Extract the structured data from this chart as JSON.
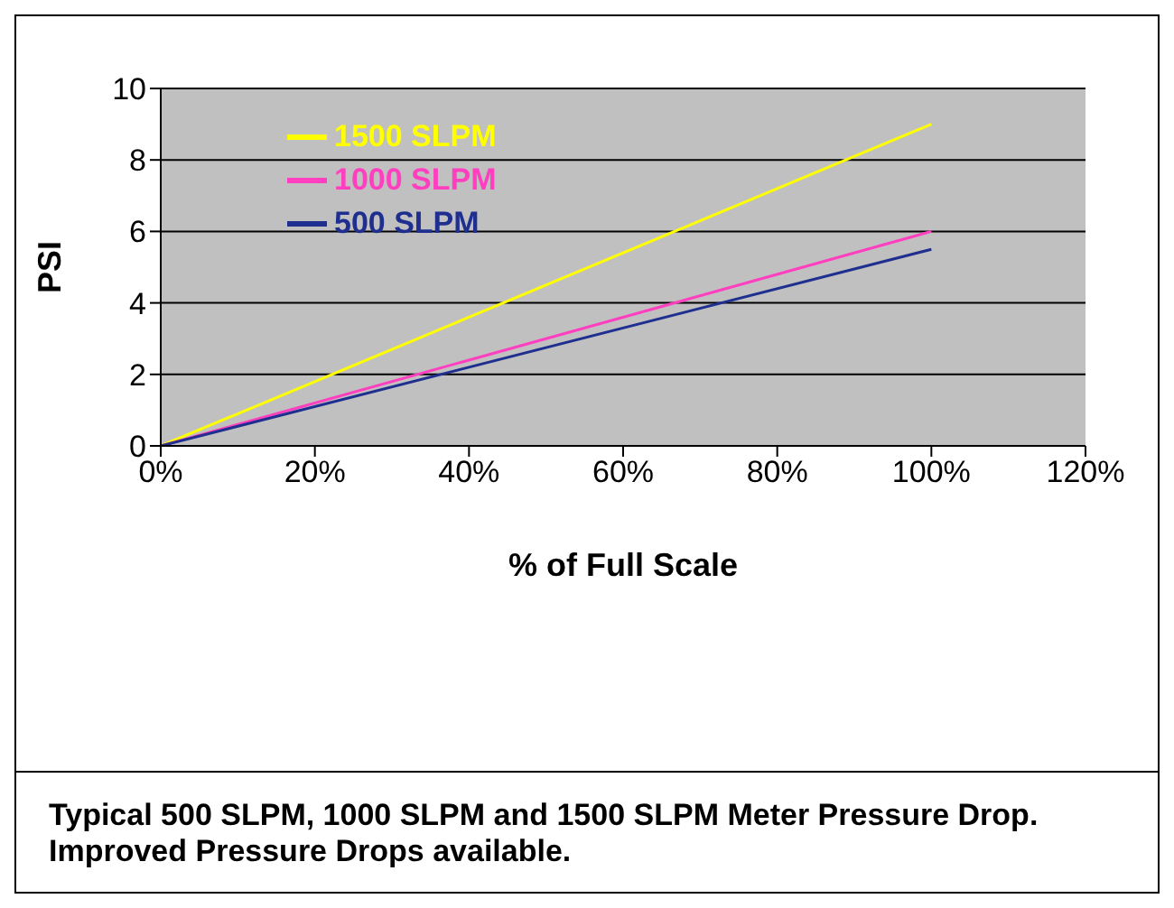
{
  "chart_data": {
    "type": "line",
    "xlabel": "% of Full Scale",
    "ylabel": "PSI",
    "x": [
      0,
      100
    ],
    "series": [
      {
        "name": "1500 SLPM",
        "color": "#ffff00",
        "values": [
          0,
          9
        ]
      },
      {
        "name": "1000 SLPM",
        "color": "#ff3fbf",
        "values": [
          0,
          6
        ]
      },
      {
        "name": "500 SLPM",
        "color": "#1f2f8f",
        "values": [
          0,
          5.5
        ]
      }
    ],
    "xlim": [
      0,
      120
    ],
    "xticks": [
      {
        "value": 0,
        "label": "0%"
      },
      {
        "value": 20,
        "label": "20%"
      },
      {
        "value": 40,
        "label": "40%"
      },
      {
        "value": 60,
        "label": "60%"
      },
      {
        "value": 80,
        "label": "80%"
      },
      {
        "value": 100,
        "label": "100%"
      },
      {
        "value": 120,
        "label": "120%"
      }
    ],
    "ylim": [
      0,
      10
    ],
    "yticks": [
      0,
      2,
      4,
      6,
      8,
      10
    ],
    "grid": "y",
    "legend": "top left",
    "marker": "none",
    "line_style": "solid",
    "annotations": [
      "Typical 500 SLPM, 1000 SLPM and 1500 SLPM Meter Pressure Drop. Improved Pressure Drops available."
    ]
  }
}
